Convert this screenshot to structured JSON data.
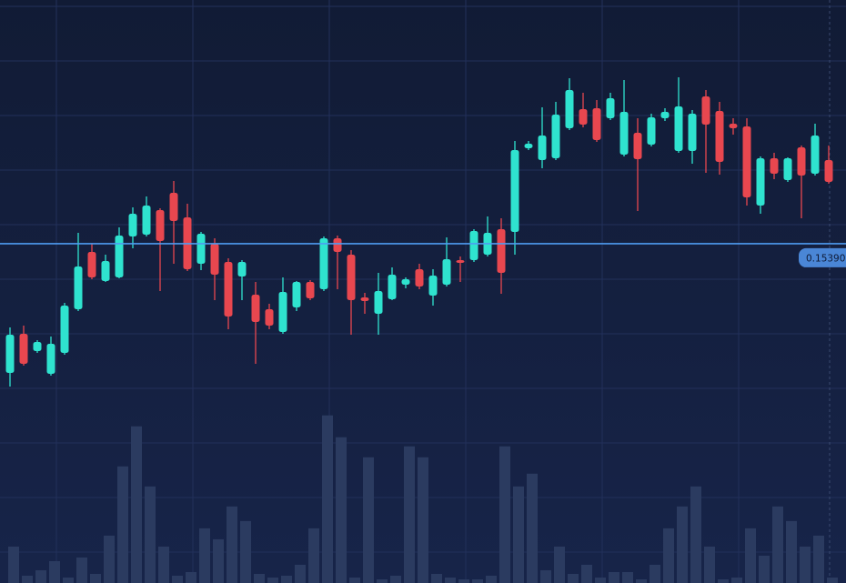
{
  "chart_data": {
    "type": "candlestick",
    "open": [
      0.14964,
      0.15093,
      0.15036,
      0.14961,
      0.1503,
      0.15174,
      0.15363,
      0.15267,
      0.15279,
      0.15414,
      0.1542,
      0.15501,
      0.15558,
      0.15477,
      0.15324,
      0.1539,
      0.1533,
      0.15282,
      0.15222,
      0.15174,
      0.15099,
      0.1518,
      0.15264,
      0.1524,
      0.15408,
      0.15354,
      0.15213,
      0.15159,
      0.15207,
      0.15255,
      0.15306,
      0.15219,
      0.15255,
      0.15336,
      0.15336,
      0.15354,
      0.15438,
      0.15429,
      0.15705,
      0.15666,
      0.15672,
      0.15771,
      0.15834,
      0.15837,
      0.15804,
      0.15684,
      0.15756,
      0.15717,
      0.15804,
      0.15696,
      0.15696,
      0.15876,
      0.15828,
      0.15786,
      0.15777,
      0.15516,
      0.15672,
      0.156,
      0.15708,
      0.15621,
      0.15666
    ],
    "high": [
      0.15114,
      0.1512,
      0.15072,
      0.15084,
      0.15195,
      0.15426,
      0.1539,
      0.15354,
      0.15444,
      0.1551,
      0.15546,
      0.15507,
      0.15597,
      0.15522,
      0.15429,
      0.15408,
      0.15342,
      0.15336,
      0.15264,
      0.15192,
      0.15279,
      0.15267,
      0.1527,
      0.15414,
      0.15417,
      0.15369,
      0.15228,
      0.15294,
      0.15312,
      0.15279,
      0.15324,
      0.15306,
      0.15411,
      0.15348,
      0.15438,
      0.1548,
      0.15474,
      0.15729,
      0.15729,
      0.1584,
      0.15858,
      0.15936,
      0.15888,
      0.15864,
      0.15888,
      0.1593,
      0.15804,
      0.15819,
      0.15837,
      0.15939,
      0.15831,
      0.15897,
      0.15858,
      0.15804,
      0.15804,
      0.15678,
      0.1569,
      0.15675,
      0.15714,
      0.15786,
      0.15714
    ],
    "low": [
      0.14919,
      0.14988,
      0.1503,
      0.14955,
      0.15024,
      0.15168,
      0.15273,
      0.15264,
      0.15276,
      0.15375,
      0.15414,
      0.15234,
      0.15324,
      0.153,
      0.15303,
      0.15204,
      0.15108,
      0.15204,
      0.14994,
      0.15108,
      0.15093,
      0.15168,
      0.15204,
      0.15234,
      0.1524,
      0.1509,
      0.15159,
      0.1509,
      0.15204,
      0.15243,
      0.1524,
      0.15186,
      0.15249,
      0.15264,
      0.1533,
      0.15348,
      0.15225,
      0.15354,
      0.15699,
      0.15639,
      0.15666,
      0.15765,
      0.15774,
      0.15726,
      0.15798,
      0.15678,
      0.15498,
      0.15711,
      0.15795,
      0.1569,
      0.15654,
      0.15624,
      0.15618,
      0.1575,
      0.15516,
      0.15489,
      0.15603,
      0.15594,
      0.15474,
      0.15615,
      0.15588
    ],
    "close": [
      0.1509,
      0.14994,
      0.15066,
      0.1506,
      0.15186,
      0.15315,
      0.15279,
      0.15333,
      0.15417,
      0.15489,
      0.15516,
      0.15399,
      0.15465,
      0.15306,
      0.15423,
      0.15288,
      0.1515,
      0.1533,
      0.15132,
      0.1512,
      0.15231,
      0.15264,
      0.1521,
      0.15408,
      0.15363,
      0.15204,
      0.15201,
      0.15234,
      0.15288,
      0.15273,
      0.15249,
      0.15285,
      0.15339,
      0.15327,
      0.15432,
      0.15426,
      0.15294,
      0.15699,
      0.1572,
      0.15747,
      0.15816,
      0.15897,
      0.15783,
      0.15732,
      0.1587,
      0.15825,
      0.15669,
      0.15807,
      0.15825,
      0.15843,
      0.15819,
      0.15783,
      0.1566,
      0.15771,
      0.15543,
      0.15672,
      0.15621,
      0.15672,
      0.15615,
      0.15747,
      0.15594
    ],
    "volume": [
      20,
      4,
      7,
      12,
      3,
      14,
      5,
      26,
      64,
      86,
      53,
      20,
      4,
      6,
      30,
      24,
      42,
      34,
      5,
      3,
      4,
      10,
      30,
      92,
      80,
      3,
      69,
      2,
      4,
      75,
      69,
      5,
      3,
      2,
      2,
      4,
      75,
      53,
      60,
      7,
      20,
      5,
      10,
      3,
      6,
      6,
      2,
      10,
      30,
      42,
      53,
      20,
      2,
      3,
      30,
      15,
      42,
      34,
      20,
      26,
      3
    ],
    "ylim": [
      0.14271,
      0.16194
    ],
    "volume_ylim": [
      0,
      320
    ],
    "price_line": 0.153902,
    "up_color": "#2fe3cf",
    "down_color": "#e8474f",
    "volume_color": "#2b3b60",
    "price_line_color": "#4f9cf0"
  }
}
